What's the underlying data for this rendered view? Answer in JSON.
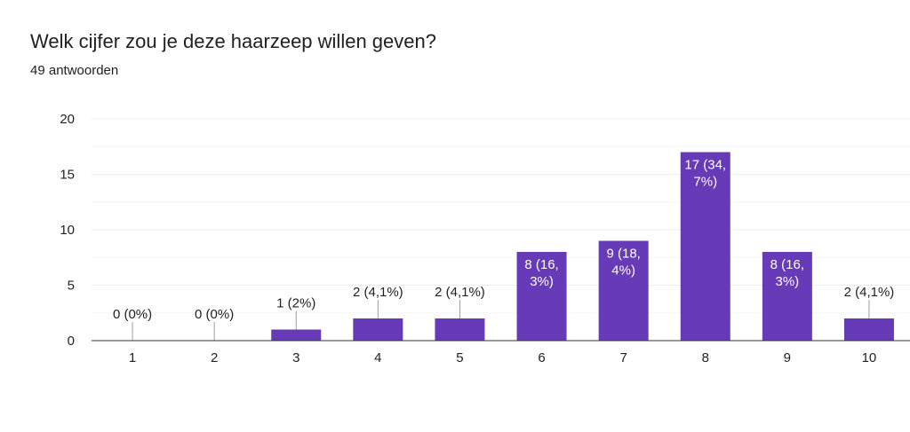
{
  "question": "Welk cijfer zou je deze haarzeep willen geven?",
  "response_count": "49 antwoorden",
  "colors": {
    "bar": "#673ab7",
    "grid": "#eeeeee",
    "axis": "#333333",
    "leader": "#9e9e9e"
  },
  "chart_data": {
    "type": "bar",
    "categories": [
      "1",
      "2",
      "3",
      "4",
      "5",
      "6",
      "7",
      "8",
      "9",
      "10"
    ],
    "values": [
      0,
      0,
      1,
      2,
      2,
      8,
      9,
      17,
      8,
      2
    ],
    "data_labels": [
      [
        "0 (0%)"
      ],
      [
        "0 (0%)"
      ],
      [
        "1 (2%)"
      ],
      [
        "2 (4,1%)"
      ],
      [
        "2 (4,1%)"
      ],
      [
        "8 (16,",
        "3%)"
      ],
      [
        "9 (18,",
        "4%)"
      ],
      [
        "17 (34,",
        "7%)"
      ],
      [
        "8 (16,",
        "3%)"
      ],
      [
        "2 (4,1%)"
      ]
    ],
    "yticks": [
      "0",
      "5",
      "10",
      "15",
      "20"
    ],
    "ylim": [
      0,
      20
    ],
    "title": "Welk cijfer zou je deze haarzeep willen geven?",
    "xlabel": "",
    "ylabel": "",
    "grid": true,
    "legend": "none"
  }
}
